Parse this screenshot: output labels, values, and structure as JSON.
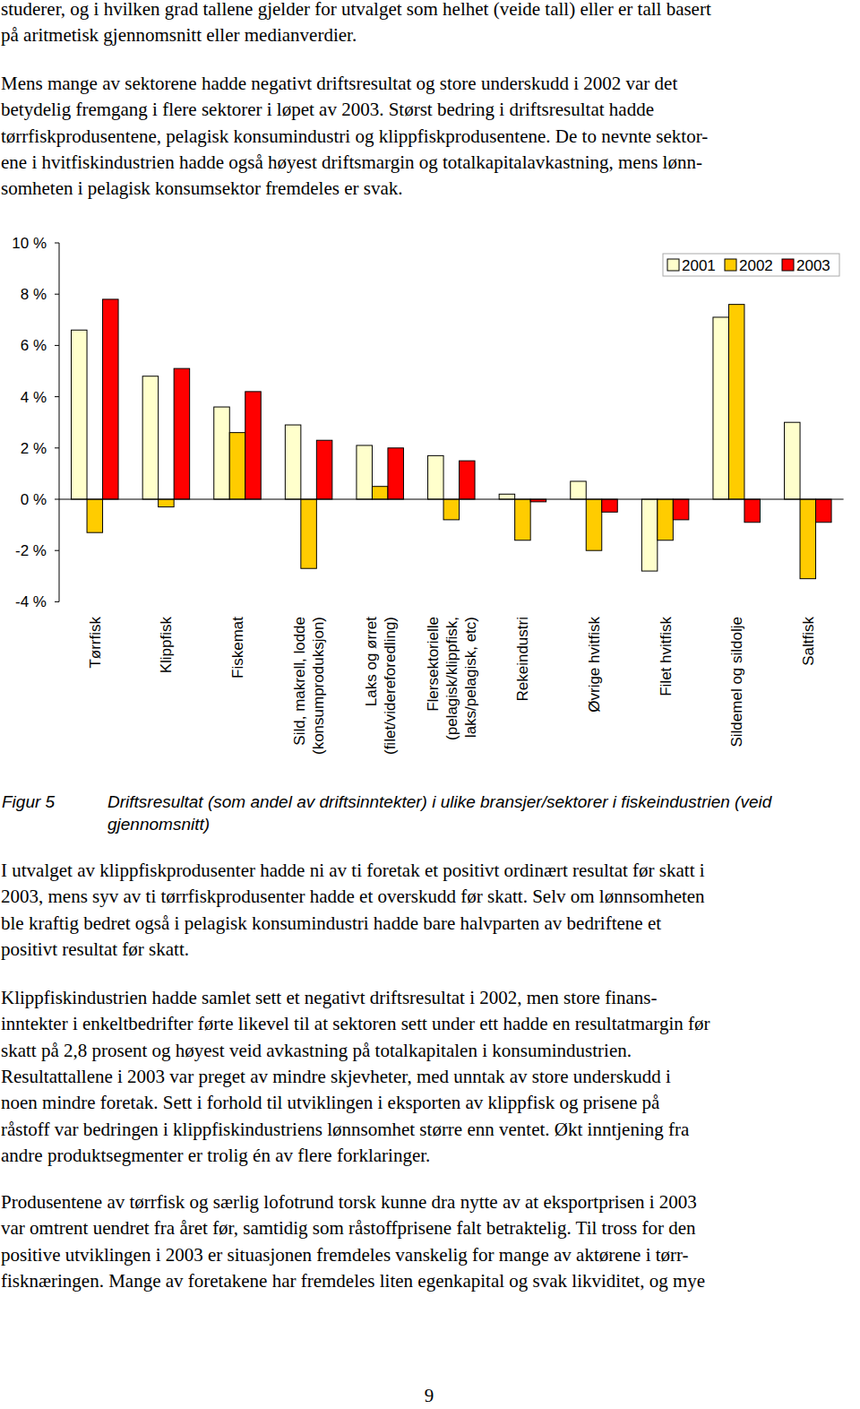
{
  "paragraphs": [
    {
      "lines": [
        "studerer, og i hvilken grad tallene gjelder for utvalget som helhet (veide tall) eller er tall basert",
        "på aritmetisk gjennomsnitt eller medianverdier."
      ]
    },
    {
      "lines": [
        "Mens mange av sektorene hadde negativt driftsresultat og store underskudd i 2002 var det",
        "betydelig fremgang i flere sektorer i løpet av 2003. Størst bedring i driftsresultat hadde",
        "tørrfiskprodusentene, pelagisk konsumindustri og klippfiskprodusentene. De to nevnte sektor-",
        "ene i hvitfiskindustrien hadde også høyest driftsmargin og totalkapitalavkastning, mens lønn-",
        "somheten i pelagisk konsumsektor fremdeles er svak."
      ]
    },
    {
      "lines": [
        "I utvalget av klippfiskprodusenter hadde ni av ti foretak et positivt ordinært resultat før skatt i",
        "2003, mens syv av ti tørrfiskprodusenter hadde et overskudd før skatt. Selv om lønnsomheten",
        "ble kraftig bedret også i pelagisk konsumindustri hadde bare halvparten av bedriftene et",
        "positivt resultat før skatt."
      ]
    },
    {
      "lines": [
        "Klippfiskindustrien hadde samlet sett et negativt driftsresultat i 2002, men store finans-",
        "inntekter i enkeltbedrifter førte likevel til at sektoren sett under ett hadde en resultatmargin før",
        "skatt på 2,8 prosent og høyest veid avkastning på totalkapitalen i konsumindustrien.",
        "Resultattallene i 2003 var preget av mindre skjevheter, med unntak av store underskudd i",
        "noen mindre foretak. Sett i forhold til utviklingen i eksporten av klippfisk og prisene på",
        "råstoff var bedringen i klippfiskindustriens lønnsomhet større enn ventet. Økt inntjening fra",
        "andre produktsegmenter er trolig én av flere forklaringer."
      ]
    },
    {
      "lines": [
        "Produsentene av tørrfisk og særlig lofotrund torsk kunne dra nytte av at eksportprisen i 2003",
        "var omtrent uendret fra året før, samtidig som råstoffprisene falt betraktelig. Til tross for den",
        "positive utviklingen i 2003 er situasjonen fremdeles vanskelig for mange av aktørene i tørr-",
        "fisknæringen. Mange av foretakene har fremdeles liten egenkapital og svak likviditet, og mye"
      ]
    }
  ],
  "figure": {
    "label": "Figur 5",
    "caption": "Driftsresultat (som andel av driftsinntekter) i ulike bransjer/sektorer i fiskeindustrien (veid gjennomsnitt)"
  },
  "page_number": "9",
  "chart_data": {
    "type": "bar",
    "categories": [
      "Tørrfisk",
      "Klippfisk",
      "Fiskemat",
      "Sild, makrell, lodde\n(konsumproduksjon)",
      "Laks og ørret\n(filet/videreforedling)",
      "Flersektorielle\n(pelagisk/klippfisk,\nlaks/pelagisk, etc)",
      "Rekeindustri",
      "Øvrige hvitfisk",
      "Filet hvitfisk",
      "Sildemel og sildolje",
      "Saltfisk"
    ],
    "series": [
      {
        "name": "2001",
        "color": "#ffffcc",
        "values": [
          6.6,
          4.8,
          3.6,
          2.9,
          2.1,
          1.7,
          0.2,
          0.7,
          -2.8,
          7.1,
          3.0
        ]
      },
      {
        "name": "2002",
        "color": "#ffcc00",
        "values": [
          -1.3,
          -0.3,
          2.6,
          -2.7,
          0.5,
          -0.8,
          -1.6,
          -2.0,
          -1.6,
          7.6,
          -3.1
        ]
      },
      {
        "name": "2003",
        "color": "#ff0000",
        "values": [
          7.8,
          5.1,
          4.2,
          2.3,
          2.0,
          1.5,
          -0.1,
          -0.5,
          -0.8,
          -0.9,
          -0.9
        ]
      }
    ],
    "ylim": [
      -4,
      10
    ],
    "yticks": [
      {
        "value": -4,
        "label": "-4 %"
      },
      {
        "value": -2,
        "label": "-2 %"
      },
      {
        "value": 0,
        "label": "0 %"
      },
      {
        "value": 2,
        "label": "2 %"
      },
      {
        "value": 4,
        "label": "4 %"
      },
      {
        "value": 6,
        "label": "6 %"
      },
      {
        "value": 8,
        "label": "8 %"
      },
      {
        "value": 10,
        "label": "10 %"
      }
    ],
    "grid": false,
    "legend": "top-right"
  }
}
